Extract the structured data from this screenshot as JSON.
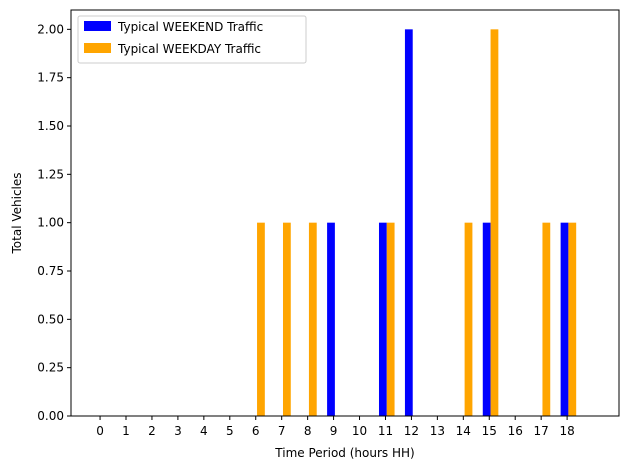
{
  "chart_data": {
    "type": "bar",
    "xlabel": "Time Period (hours HH)",
    "ylabel": "Total Vehicles",
    "categories": [
      "0",
      "1",
      "2",
      "3",
      "4",
      "5",
      "6",
      "7",
      "8",
      "9",
      "10",
      "11",
      "12",
      "13",
      "14",
      "15",
      "16",
      "17",
      "18"
    ],
    "x_range": [
      -1.12,
      20.0
    ],
    "ylim": [
      0,
      2.1
    ],
    "yticks": [
      "0.00",
      "0.25",
      "0.50",
      "0.75",
      "1.00",
      "1.25",
      "1.50",
      "1.75",
      "2.00"
    ],
    "grid": false,
    "legend_position": "top-left",
    "series": [
      {
        "name": "Typical WEEKEND Traffic",
        "color": "#0000ff",
        "bars": [
          {
            "x": 8.9,
            "value": 1
          },
          {
            "x": 10.9,
            "value": 1
          },
          {
            "x": 11.9,
            "value": 2
          },
          {
            "x": 14.9,
            "value": 1
          },
          {
            "x": 17.9,
            "value": 1
          }
        ]
      },
      {
        "name": "Typical WEEKDAY Traffic",
        "color": "#ffa500",
        "bars": [
          {
            "x": 6.2,
            "value": 1
          },
          {
            "x": 7.2,
            "value": 1
          },
          {
            "x": 8.2,
            "value": 1
          },
          {
            "x": 11.2,
            "value": 1
          },
          {
            "x": 14.2,
            "value": 1
          },
          {
            "x": 15.2,
            "value": 2
          },
          {
            "x": 17.2,
            "value": 1
          },
          {
            "x": 18.2,
            "value": 1
          }
        ]
      }
    ]
  }
}
